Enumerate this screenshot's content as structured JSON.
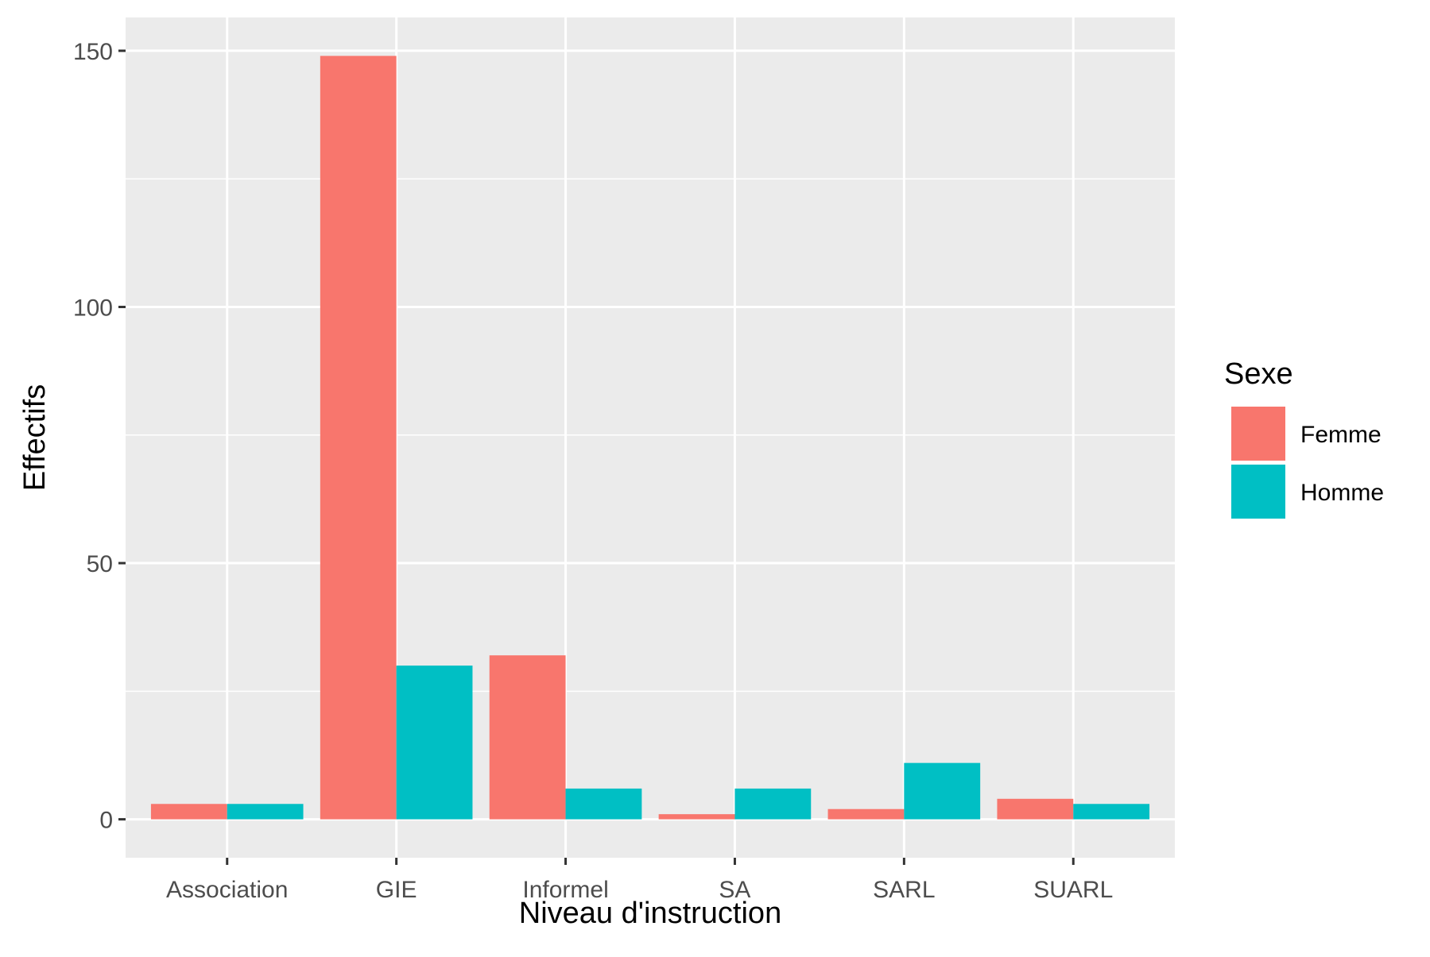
{
  "chart_data": {
    "type": "bar",
    "xlabel": "Niveau d'instruction",
    "ylabel": "Effectifs",
    "categories": [
      "Association",
      "GIE",
      "Informel",
      "SA",
      "SARL",
      "SUARL"
    ],
    "series": [
      {
        "name": "Femme",
        "color": "#F8766D",
        "values": [
          3,
          149,
          32,
          1,
          2,
          4
        ]
      },
      {
        "name": "Homme",
        "color": "#00BFC4",
        "values": [
          3,
          30,
          6,
          6,
          11,
          3
        ]
      }
    ],
    "ylim": [
      -7.5,
      156.5
    ],
    "yticks": [
      0,
      50,
      100,
      150
    ],
    "yminor": [
      25,
      75,
      125
    ],
    "grid": true,
    "legend": {
      "title": "Sexe",
      "position": "right"
    },
    "colors": {
      "panel_bg": "#EBEBEB",
      "grid": "#FFFFFF",
      "text": "#4D4D4D",
      "tick": "#333333"
    }
  }
}
